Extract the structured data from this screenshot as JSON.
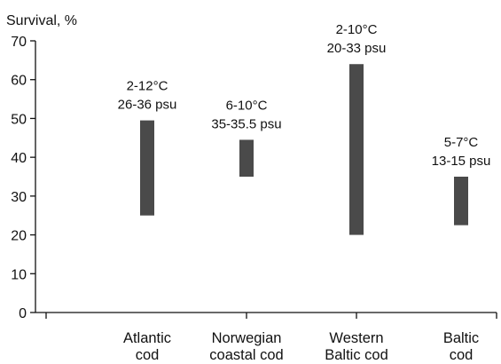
{
  "chart_data": {
    "type": "bar",
    "subtype": "floating-range",
    "title": "",
    "xlabel": "",
    "ylabel": "Survival, %",
    "ylim": [
      0,
      70
    ],
    "yticks": [
      "0",
      "10",
      "20",
      "30",
      "40",
      "50",
      "60",
      "70"
    ],
    "grid": false,
    "legend": "none",
    "bar_color": "#4a4a4a",
    "categories": [
      {
        "line1": "Atlantic",
        "line2": "cod"
      },
      {
        "line1": "Norwegian",
        "line2": "coastal cod"
      },
      {
        "line1": "Western",
        "line2": "Baltic cod"
      },
      {
        "line1": "Baltic",
        "line2": "cod"
      }
    ],
    "ranges": [
      {
        "low": 25,
        "high": 49.5,
        "temperature": "2-12°C",
        "salinity": "26-36 psu"
      },
      {
        "low": 35,
        "high": 44.5,
        "temperature": "6-10°C",
        "salinity": "35-35.5 psu"
      },
      {
        "low": 20,
        "high": 64,
        "temperature": "2-10°C",
        "salinity": "20-33 psu"
      },
      {
        "low": 22.5,
        "high": 35,
        "temperature": "5-7°C",
        "salinity": "13-15 psu"
      }
    ]
  }
}
